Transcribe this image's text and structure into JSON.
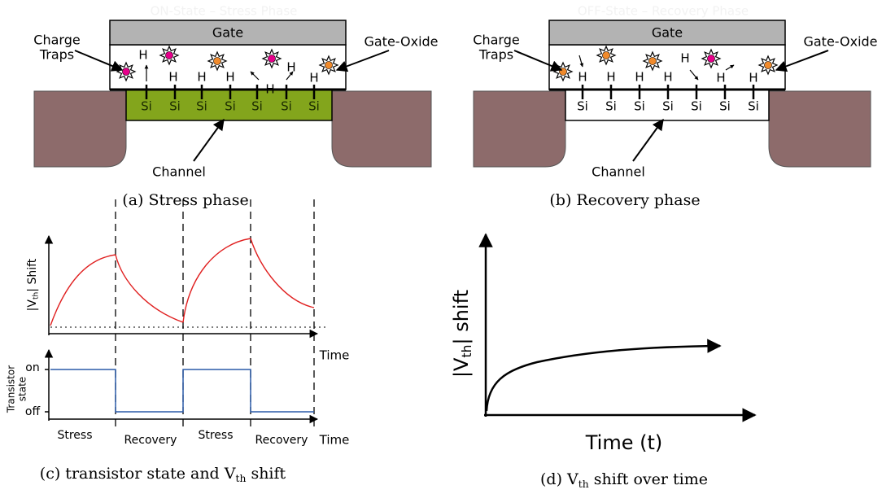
{
  "panel_a": {
    "title": "ON-State – Stress Phase",
    "gate": "Gate",
    "charge_traps": [
      "Charge",
      "Traps"
    ],
    "gate_oxide": "Gate-Oxide",
    "h_labels": [
      "H",
      "H",
      "H",
      "H",
      "H",
      "H",
      "H"
    ],
    "si_labels": [
      "Si",
      "Si",
      "Si",
      "Si",
      "Si",
      "Si",
      "Si"
    ],
    "channel": "Channel",
    "caption": "(a) Stress phase"
  },
  "panel_b": {
    "title": "OFF-State – Recovery Phase",
    "gate": "Gate",
    "charge_traps": [
      "Charge",
      "Traps"
    ],
    "gate_oxide": "Gate-Oxide",
    "h_labels": [
      "H",
      "H",
      "H",
      "H",
      "H",
      "H",
      "H"
    ],
    "si_labels": [
      "Si",
      "Si",
      "Si",
      "Si",
      "Si",
      "Si",
      "Si"
    ],
    "channel": "Channel",
    "caption": "(b) Recovery phase"
  },
  "panel_c": {
    "y_label": {
      "main": "|V",
      "sub": "th",
      "end": "| Shift"
    },
    "x_label_top": "Time",
    "state_label": [
      "Transistor",
      "state"
    ],
    "on": "on",
    "off": "off",
    "phases": [
      "Stress",
      "Recovery",
      "Stress",
      "Recovery"
    ],
    "x_label_bottom": "Time",
    "caption": {
      "main": "(c) transistor state and V",
      "sub": "th",
      "end": " shift"
    }
  },
  "panel_d": {
    "y_label": {
      "main": "|V",
      "sub": "th",
      "end": "| shift"
    },
    "x_label": "Time (t)",
    "caption": {
      "main": "(d) V",
      "sub": "th",
      "end": " shift over time"
    }
  }
}
